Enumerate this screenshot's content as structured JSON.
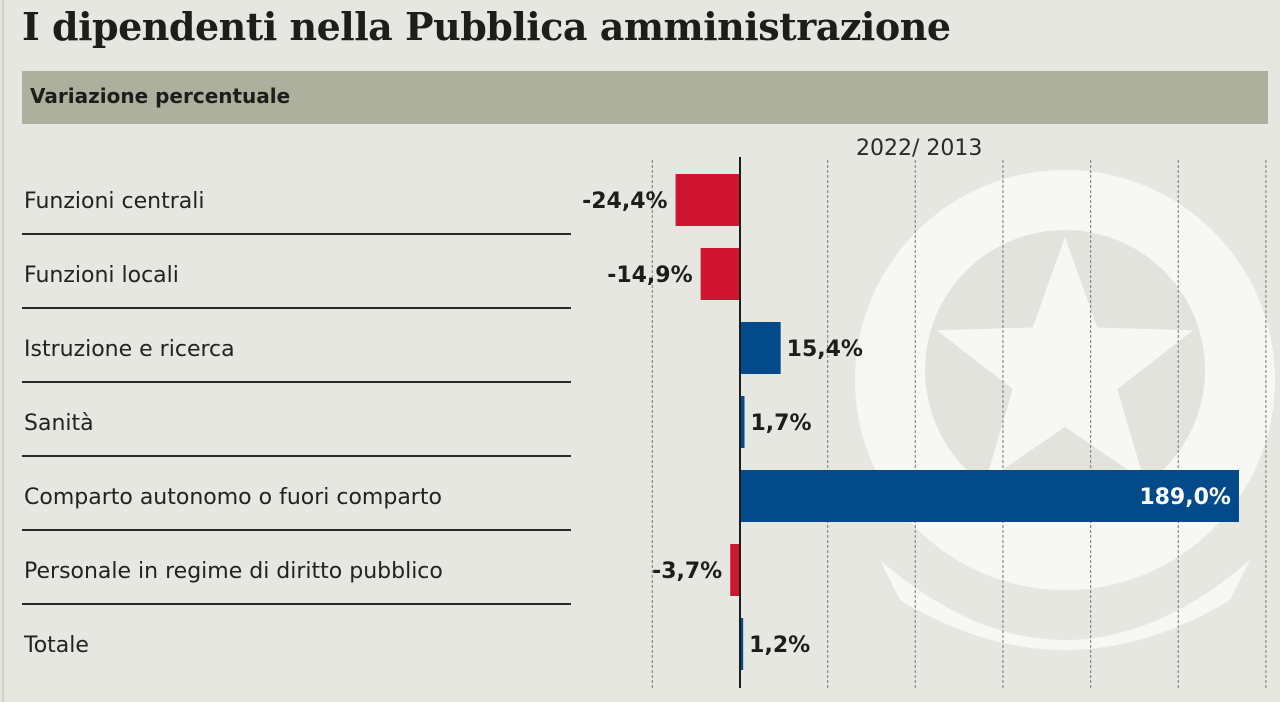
{
  "header": {
    "title": "I dipendenti nella Pubblica amministrazione",
    "subtitle": "Variazione percentuale",
    "period_label": "2022/ 2013"
  },
  "colors": {
    "negative": "#d01530",
    "positive": "#034a8a",
    "background": "#e6e7e1",
    "band": "#acb09c"
  },
  "chart_data": {
    "type": "bar",
    "orientation": "horizontal",
    "title": "I dipendenti nella Pubblica amministrazione",
    "subtitle": "Variazione percentuale",
    "series_label": "2022/ 2013",
    "xlabel": "",
    "ylabel": "",
    "unit": "%",
    "xlim": [
      -33,
      200
    ],
    "grid": true,
    "grid_step": 33.2,
    "legend": "none",
    "categories": [
      "Funzioni centrali",
      "Funzioni locali",
      "Istruzione e ricerca",
      "Sanità",
      "Comparto autonomo o fuori comparto",
      "Personale in regime di diritto pubblico",
      "Totale"
    ],
    "values": [
      -24.4,
      -14.9,
      15.4,
      1.7,
      189.0,
      -3.7,
      1.2
    ],
    "value_labels": [
      "-24,4%",
      "-14,9%",
      "15,4%",
      "1,7%",
      "189,0%",
      "-3,7%",
      "1,2%"
    ]
  }
}
